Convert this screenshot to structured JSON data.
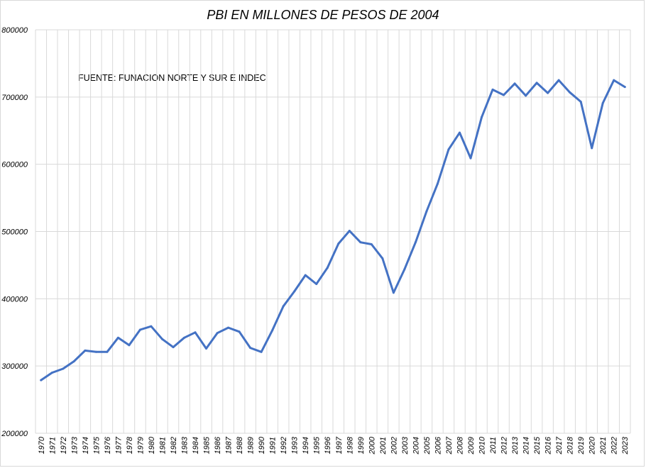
{
  "chart_data": {
    "type": "line",
    "title": "PBI EN MILLONES DE PESOS DE 2004",
    "annotation": "FUENTE: FUNACION NORTE Y SUR E INDEC",
    "xlabel": "",
    "ylabel": "",
    "ylim": [
      200000,
      800000
    ],
    "yticks": [
      "200000",
      "300000",
      "400000",
      "500000",
      "600000",
      "700000",
      "800000"
    ],
    "grid": true,
    "legend": "none",
    "x": [
      "1970",
      "1971",
      "1972",
      "1973",
      "1974",
      "1975",
      "1976",
      "1977",
      "1978",
      "1979",
      "1980",
      "1981",
      "1982",
      "1983",
      "1984",
      "1985",
      "1986",
      "1987",
      "1988",
      "1989",
      "1990",
      "1991",
      "1992",
      "1993",
      "1994",
      "1995",
      "1996",
      "1997",
      "1998",
      "1999",
      "2000",
      "2001",
      "2002",
      "2003",
      "2004",
      "2005",
      "2006",
      "2007",
      "2008",
      "2009",
      "2010",
      "2011",
      "2012",
      "2013",
      "2014",
      "2015",
      "2016",
      "2017",
      "2018",
      "2019",
      "2020",
      "2021",
      "2022",
      "2023"
    ],
    "series": [
      {
        "color": "#4472c4",
        "values": [
          279000,
          290000,
          296000,
          307000,
          323000,
          321000,
          321000,
          342000,
          331000,
          354000,
          359000,
          340000,
          328000,
          342000,
          350000,
          326000,
          349000,
          357000,
          351000,
          327000,
          321000,
          353000,
          389000,
          411000,
          435000,
          422000,
          446000,
          482000,
          501000,
          484000,
          481000,
          460000,
          409000,
          444000,
          484000,
          530000,
          571000,
          622000,
          647000,
          609000,
          670000,
          711000,
          703000,
          720000,
          702000,
          721000,
          706000,
          725000,
          707000,
          693000,
          624000,
          691000,
          725000,
          715000
        ]
      }
    ]
  }
}
